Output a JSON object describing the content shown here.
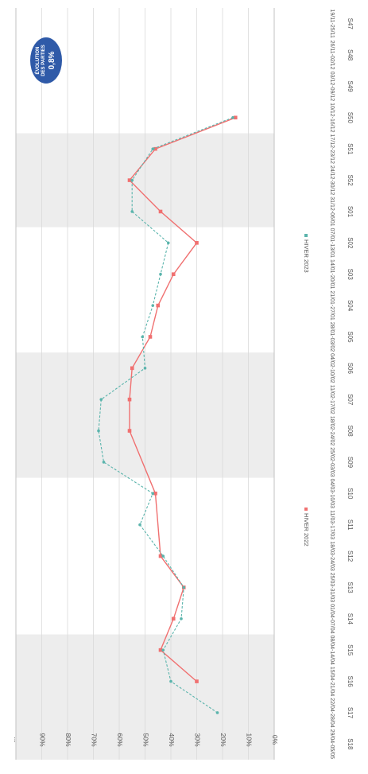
{
  "chart_data": {
    "type": "line",
    "orientation": "rotated-90-clockwise",
    "categories": [
      "S47",
      "S48",
      "S49",
      "S50",
      "S51",
      "S52",
      "S01",
      "S02",
      "S03",
      "S04",
      "S05",
      "S06",
      "S07",
      "S08",
      "S09",
      "S10",
      "S11",
      "S12",
      "S13",
      "S14",
      "S15",
      "S16",
      "S17",
      "S18"
    ],
    "date_ranges": [
      "19/11-25/11",
      "26/11-02/12",
      "03/12-09/12",
      "10/12-16/12",
      "17/12-23/12",
      "24/12-30/12",
      "31/12-06/01",
      "07/01-13/01",
      "14/01-20/01",
      "21/01-27/01",
      "28/01-03/02",
      "04/02-10/02",
      "11/02-17/02",
      "18/02-24/02",
      "25/02-03/03",
      "04/03-10/03",
      "11/03-17/03",
      "18/03-24/03",
      "25/03-31/03",
      "01/04-07/04",
      "08/04-14/04",
      "15/04-21/04",
      "22/04-28/04",
      "29/04-05/05"
    ],
    "series": [
      {
        "name": "HIVER 2022",
        "color": "#f07070",
        "values": [
          null,
          null,
          null,
          15,
          46,
          56,
          44,
          30,
          39,
          45,
          48,
          55,
          56,
          56,
          null,
          46,
          null,
          44,
          35,
          39,
          44,
          30,
          null,
          null
        ]
      },
      {
        "name": "HIVER 2023",
        "color": "#5ab4ac",
        "values": [
          null,
          null,
          null,
          16,
          47,
          55,
          55,
          41,
          44,
          47,
          51,
          50,
          67,
          68,
          66,
          47,
          52,
          43,
          35,
          36,
          43,
          40,
          22,
          null
        ]
      }
    ],
    "ylim": [
      0,
      100
    ],
    "y_ticks": [
      0,
      10,
      20,
      30,
      40,
      50,
      60,
      70,
      80,
      90,
      100
    ],
    "y_tick_labels": [
      "0%",
      "10%",
      "20%",
      "30%",
      "40%",
      "50%",
      "60%",
      "70%",
      "80%",
      "90%",
      "..."
    ],
    "highlighted_weeks": [
      [
        "S51",
        "S01"
      ],
      [
        "S06",
        "S09"
      ],
      [
        "S15",
        "S18"
      ]
    ],
    "legend_position": "bottom",
    "grid": true
  },
  "badge": {
    "line1": "ÉVOLUTION",
    "line2": "DES PARTIES",
    "value": "0,8%",
    "color": "#2f5aa8"
  },
  "colors": {
    "highlight_band": "#ededed",
    "grid": "#d6d6d6"
  }
}
